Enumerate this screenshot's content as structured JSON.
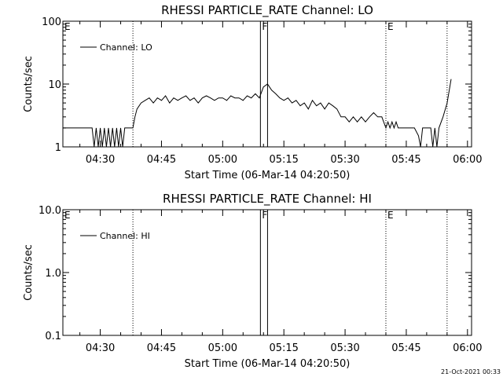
{
  "footer_timestamp": "21-Oct-2021 00:33",
  "chart_data": [
    {
      "type": "line",
      "title": "RHESSI PARTICLE_RATE Channel: LO",
      "xlabel": "Start Time (06-Mar-14 04:20:50)",
      "ylabel": "Counts/sec",
      "yscale": "log",
      "ylim": [
        1,
        100
      ],
      "yticks": [
        1,
        10,
        100
      ],
      "ytick_labels": [
        "1",
        "10",
        "100"
      ],
      "xlim": [
        "04:20:50",
        "06:01:00"
      ],
      "xticks": [
        "04:30",
        "04:45",
        "05:00",
        "05:15",
        "05:30",
        "05:45",
        "06:00"
      ],
      "legend": {
        "position": "top-left",
        "label": "Channel: LO"
      },
      "flags": [
        {
          "label": "E",
          "time": "04:20:50"
        },
        {
          "label": "F",
          "time": "05:09:15"
        },
        {
          "label": "E",
          "time": "05:40:00"
        }
      ],
      "dotted_lines": [
        "04:38:00",
        "05:40:00",
        "05:55:00"
      ],
      "band": {
        "from": "05:09:15",
        "to": "05:11:00"
      },
      "series": [
        {
          "name": "Channel: LO",
          "x": [
            "04:20:50",
            "04:24:00",
            "04:27:00",
            "04:28:00",
            "04:28:30",
            "04:29:00",
            "04:29:30",
            "04:30:00",
            "04:30:30",
            "04:31:00",
            "04:31:30",
            "04:32:00",
            "04:32:30",
            "04:33:00",
            "04:33:30",
            "04:34:00",
            "04:34:30",
            "04:35:00",
            "04:35:30",
            "04:36:00",
            "04:37:00",
            "04:38:00",
            "04:38:30",
            "04:39:00",
            "04:40:00",
            "04:41:00",
            "04:42:00",
            "04:43:00",
            "04:44:00",
            "04:45:00",
            "04:46:00",
            "04:47:00",
            "04:48:00",
            "04:49:00",
            "04:50:00",
            "04:51:00",
            "04:52:00",
            "04:53:00",
            "04:54:00",
            "04:55:00",
            "04:56:00",
            "04:57:00",
            "04:58:00",
            "04:59:00",
            "05:00:00",
            "05:01:00",
            "05:02:00",
            "05:03:00",
            "05:04:00",
            "05:05:00",
            "05:06:00",
            "05:07:00",
            "05:08:00",
            "05:09:00",
            "05:10:00",
            "05:11:00",
            "05:12:00",
            "05:13:00",
            "05:14:00",
            "05:15:00",
            "05:16:00",
            "05:17:00",
            "05:18:00",
            "05:19:00",
            "05:20:00",
            "05:21:00",
            "05:22:00",
            "05:23:00",
            "05:24:00",
            "05:25:00",
            "05:26:00",
            "05:27:00",
            "05:28:00",
            "05:29:00",
            "05:30:00",
            "05:31:00",
            "05:32:00",
            "05:33:00",
            "05:34:00",
            "05:35:00",
            "05:36:00",
            "05:37:00",
            "05:38:00",
            "05:39:00",
            "05:40:00",
            "05:40:30",
            "05:41:00",
            "05:41:30",
            "05:42:00",
            "05:42:30",
            "05:43:00",
            "05:44:00",
            "05:45:00",
            "05:46:00",
            "05:47:00",
            "05:48:00",
            "05:48:30",
            "05:49:00",
            "05:50:00",
            "05:51:00",
            "05:51:30",
            "05:52:00",
            "05:52:30",
            "05:53:00",
            "05:54:00",
            "05:55:00",
            "05:56:00"
          ],
          "values": [
            2,
            2,
            2,
            2,
            1,
            2,
            1,
            2,
            1,
            2,
            1,
            2,
            1,
            2,
            1,
            2,
            1,
            2,
            1,
            2,
            2,
            2,
            3,
            4,
            5,
            5.5,
            6,
            5,
            6,
            5.5,
            6.5,
            5,
            6,
            5.5,
            6,
            6.5,
            5.5,
            6,
            5,
            6,
            6.5,
            6,
            5.5,
            6,
            6,
            5.5,
            6.5,
            6,
            6,
            5.5,
            6.5,
            6,
            7,
            6,
            9,
            10,
            8,
            7,
            6,
            5.5,
            6,
            5,
            5.5,
            4.5,
            5,
            4,
            5.5,
            4.5,
            5,
            4,
            5,
            4.5,
            4,
            3,
            3,
            2.5,
            3,
            2.5,
            3,
            2.5,
            3,
            3.5,
            3,
            3,
            2,
            2.5,
            2,
            2.5,
            2,
            2.5,
            2,
            2,
            2,
            2,
            2,
            1.5,
            1,
            2,
            2,
            2,
            1,
            2,
            1,
            2,
            3,
            5,
            12
          ]
        }
      ]
    },
    {
      "type": "line",
      "title": "RHESSI PARTICLE_RATE Channel: HI",
      "xlabel": "Start Time (06-Mar-14 04:20:50)",
      "ylabel": "Counts/sec",
      "yscale": "log",
      "ylim": [
        0.1,
        10
      ],
      "yticks": [
        0.1,
        1,
        10
      ],
      "ytick_labels": [
        "0.1",
        "1.0",
        "10.0"
      ],
      "xlim": [
        "04:20:50",
        "06:01:00"
      ],
      "xticks": [
        "04:30",
        "04:45",
        "05:00",
        "05:15",
        "05:30",
        "05:45",
        "06:00"
      ],
      "legend": {
        "position": "top-left",
        "label": "Channel: HI"
      },
      "flags": [
        {
          "label": "E",
          "time": "04:20:50"
        },
        {
          "label": "F",
          "time": "05:09:15"
        },
        {
          "label": "E",
          "time": "05:40:00"
        }
      ],
      "dotted_lines": [
        "04:38:00",
        "05:40:00",
        "05:55:00"
      ],
      "band": {
        "from": "05:09:15",
        "to": "05:11:00"
      },
      "series": [
        {
          "name": "Channel: HI",
          "x": [],
          "values": []
        }
      ]
    }
  ]
}
